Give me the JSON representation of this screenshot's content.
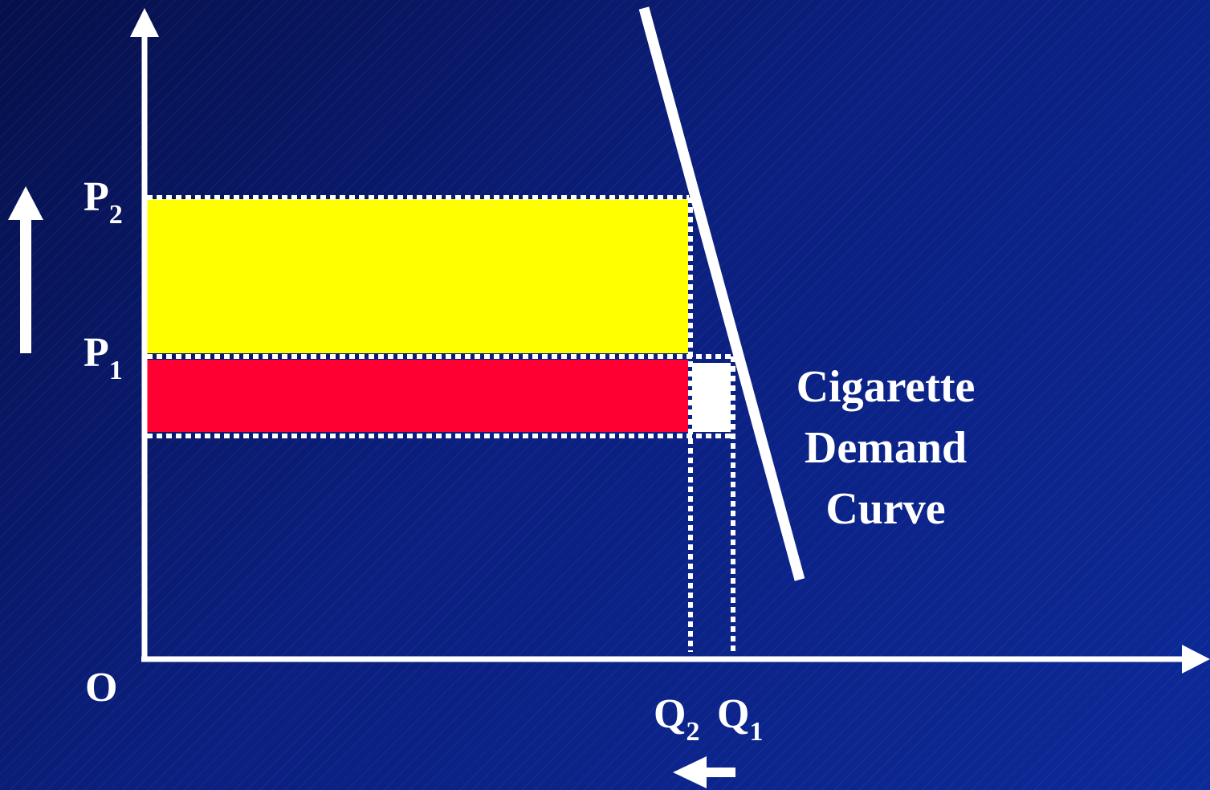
{
  "diagram": {
    "axis_origin_label": "O",
    "price_labels": [
      {
        "letter": "P",
        "subscript": "2"
      },
      {
        "letter": "P",
        "subscript": "1"
      }
    ],
    "quantity_labels": [
      {
        "letter": "Q",
        "subscript": "2"
      },
      {
        "letter": "Q",
        "subscript": "1"
      }
    ],
    "curve_label_lines": [
      "Cigarette",
      "Demand",
      "Curve"
    ],
    "colors": {
      "background": "#0b1f7e",
      "axis": "#ffffff",
      "demand_curve": "#ffffff",
      "tax_revenue_rect": "#ffff00",
      "producer_revenue_rect": "#ff0033",
      "lost_revenue_rect": "#ffffff",
      "guide_lines": "#ffffff"
    }
  }
}
